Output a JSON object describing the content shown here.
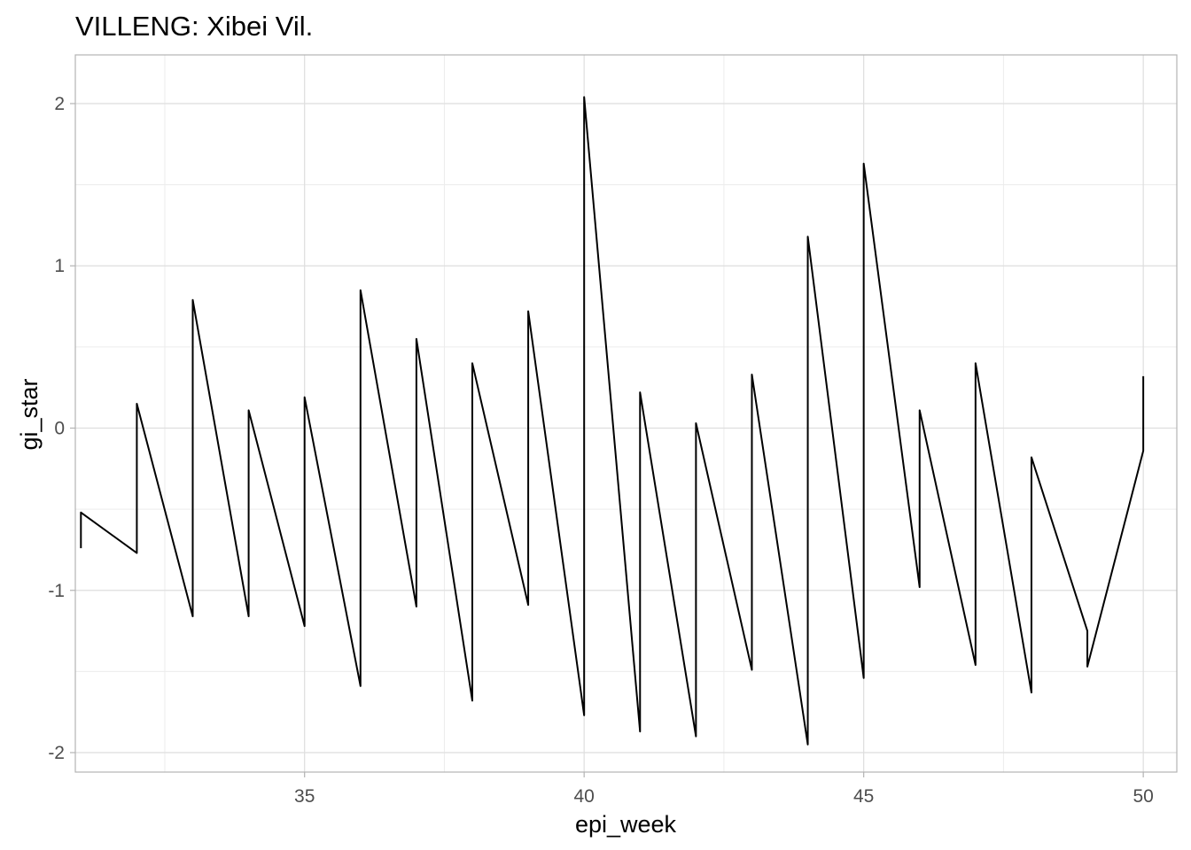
{
  "chart_data": {
    "type": "line",
    "title": "VILLENG: Xibei Vil.",
    "xlabel": "epi_week",
    "ylabel": "gi_star",
    "xlim": [
      30.9,
      50.6
    ],
    "ylim": [
      -2.12,
      2.3
    ],
    "x_ticks": [
      35,
      40,
      45,
      50
    ],
    "x_tick_labels": [
      "35",
      "40",
      "45",
      "50"
    ],
    "x_minor_breaks": [
      32.5,
      37.5,
      42.5,
      47.5
    ],
    "y_ticks": [
      -2,
      -1,
      0,
      1,
      2
    ],
    "y_tick_labels": [
      "-2",
      "-1",
      "0",
      "1",
      "2"
    ],
    "y_minor_breaks": [
      -1.5,
      -0.5,
      0.5,
      1.5
    ],
    "grid": true,
    "theme": "light",
    "colors": {
      "line": "#000000",
      "grid_major": "#dedede",
      "grid_minor": "#ececec",
      "panel_border": "#b3b3b3",
      "tick_label": "#4d4d4d"
    },
    "series": [
      {
        "points": [
          [
            31,
            -0.74
          ],
          [
            31,
            -0.52
          ],
          [
            32,
            -0.77
          ],
          [
            32,
            0.15
          ],
          [
            33,
            -1.16
          ],
          [
            33,
            0.79
          ],
          [
            34,
            -1.16
          ],
          [
            34,
            0.11
          ],
          [
            35,
            -1.22
          ],
          [
            35,
            0.19
          ],
          [
            36,
            -1.59
          ],
          [
            36,
            0.85
          ],
          [
            37,
            -1.1
          ],
          [
            37,
            0.55
          ],
          [
            38,
            -1.68
          ],
          [
            38,
            0.4
          ],
          [
            39,
            -1.09
          ],
          [
            39,
            0.72
          ],
          [
            40,
            -1.77
          ],
          [
            40,
            2.04
          ],
          [
            41,
            -1.87
          ],
          [
            41,
            0.22
          ],
          [
            42,
            -1.9
          ],
          [
            42,
            0.03
          ],
          [
            43,
            -1.49
          ],
          [
            43,
            0.33
          ],
          [
            44,
            -1.95
          ],
          [
            44,
            1.18
          ],
          [
            45,
            -1.54
          ],
          [
            45,
            1.63
          ],
          [
            46,
            -0.98
          ],
          [
            46,
            0.11
          ],
          [
            47,
            -1.46
          ],
          [
            47,
            0.4
          ],
          [
            48,
            -1.63
          ],
          [
            48,
            -0.18
          ],
          [
            49,
            -1.25
          ],
          [
            49,
            -1.47
          ],
          [
            50,
            -0.14
          ],
          [
            50,
            0.32
          ]
        ]
      }
    ]
  }
}
